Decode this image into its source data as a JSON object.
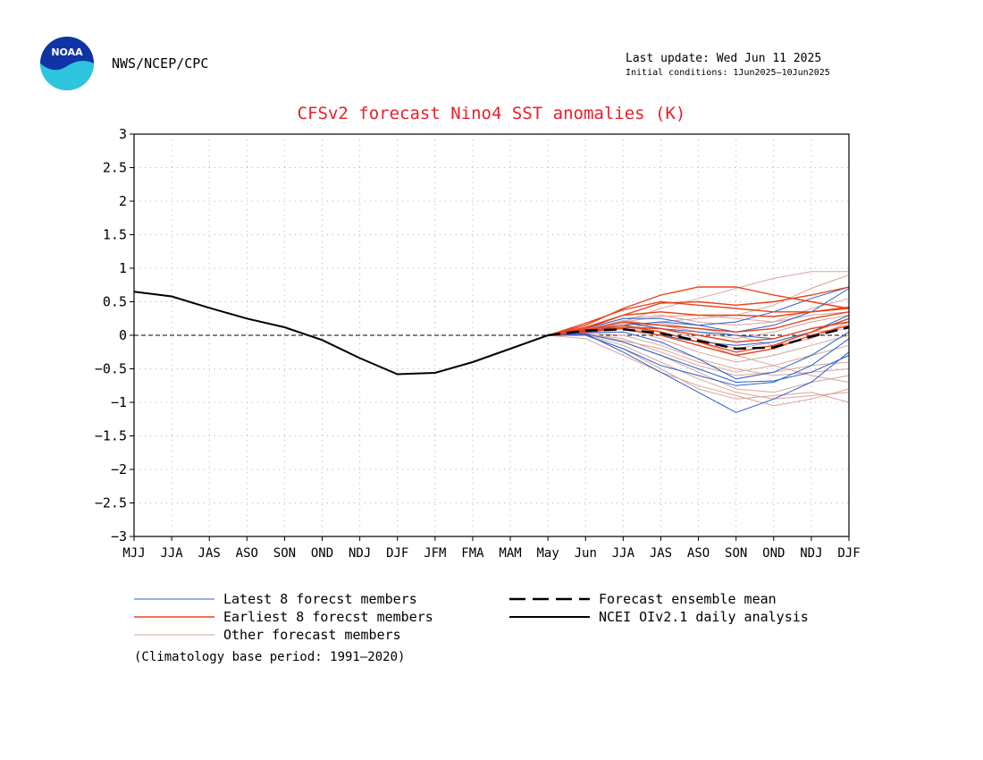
{
  "header": {
    "org": "NWS/NCEP/CPC",
    "last_update": "Last update: Wed Jun 11 2025",
    "initial_conditions": "Initial conditions: 1Jun2025—10Jun2025",
    "logo_icon": "noaa-logo-icon"
  },
  "colors": {
    "title": "#e8202a",
    "latest": "#2c5fc7",
    "earliest": "#e8431c",
    "other": "#d9a59a",
    "mean": "#000000",
    "analysis": "#000000"
  },
  "chart_data": {
    "type": "line",
    "title": "CFSv2 forecast Nino4 SST anomalies (K)",
    "xlabel": "",
    "ylabel": "",
    "categories": [
      "MJJ",
      "JJA",
      "JAS",
      "ASO",
      "SON",
      "OND",
      "NDJ",
      "DJF",
      "JFM",
      "FMA",
      "MAM",
      "May",
      "Jun",
      "JJA",
      "JAS",
      "ASO",
      "SON",
      "OND",
      "NDJ",
      "DJF"
    ],
    "ylim": [
      -3,
      3
    ],
    "yticks": [
      "3",
      "2.5",
      "2",
      "1.5",
      "1",
      "0.5",
      "0",
      "−0.5",
      "−1",
      "−1.5",
      "−2",
      "−2.5",
      "−3"
    ],
    "ytick_values": [
      3,
      2.5,
      2,
      1.5,
      1,
      0.5,
      0,
      -0.5,
      -1,
      -1.5,
      -2,
      -2.5,
      -3
    ],
    "grid": true,
    "zero_line": true,
    "analysis": {
      "name": "NCEI OIv2.1 daily analysis",
      "values": [
        0.65,
        0.58,
        0.41,
        0.25,
        0.12,
        -0.07,
        -0.34,
        -0.58,
        -0.56,
        -0.4,
        -0.2,
        0.0
      ]
    },
    "forecast_x_start": 11,
    "ensemble_mean": {
      "name": "Forecast ensemble mean",
      "values": [
        0.0,
        0.07,
        0.09,
        0.03,
        -0.08,
        -0.2,
        -0.18,
        -0.02,
        0.12
      ]
    },
    "latest_members": {
      "name": "Latest 8 forecst members",
      "series": [
        [
          0.0,
          0.02,
          -0.25,
          -0.55,
          -0.85,
          -1.15,
          -0.95,
          -0.7,
          -0.25
        ],
        [
          0.0,
          0.0,
          -0.2,
          -0.45,
          -0.6,
          -0.75,
          -0.7,
          -0.45,
          -0.05
        ],
        [
          0.0,
          0.05,
          0.15,
          0.2,
          0.15,
          0.05,
          0.15,
          0.35,
          0.7
        ],
        [
          0.0,
          0.04,
          0.05,
          -0.1,
          -0.35,
          -0.65,
          -0.55,
          -0.3,
          0.05
        ],
        [
          0.0,
          0.08,
          0.2,
          0.1,
          0.05,
          0.0,
          -0.05,
          0.1,
          0.2
        ],
        [
          0.0,
          0.1,
          0.25,
          0.25,
          0.15,
          0.2,
          0.35,
          0.55,
          0.72
        ],
        [
          0.0,
          0.02,
          -0.1,
          -0.3,
          -0.5,
          -0.7,
          -0.68,
          -0.55,
          -0.3
        ],
        [
          0.0,
          0.05,
          0.1,
          0.0,
          -0.1,
          -0.15,
          -0.1,
          0.05,
          0.3
        ]
      ]
    },
    "earliest_members": {
      "name": "Earliest 8 forecst members",
      "series": [
        [
          0.0,
          0.15,
          0.4,
          0.6,
          0.72,
          0.72,
          0.6,
          0.5,
          0.4
        ],
        [
          0.0,
          0.12,
          0.3,
          0.48,
          0.5,
          0.45,
          0.5,
          0.6,
          0.72
        ],
        [
          0.0,
          0.08,
          0.15,
          0.05,
          -0.1,
          -0.25,
          -0.15,
          0.05,
          0.25
        ],
        [
          0.0,
          0.1,
          0.3,
          0.35,
          0.3,
          0.3,
          0.28,
          0.35,
          0.42
        ],
        [
          0.0,
          0.05,
          0.1,
          0.0,
          -0.15,
          -0.3,
          -0.2,
          0.0,
          0.15
        ],
        [
          0.0,
          0.08,
          0.2,
          0.15,
          0.1,
          0.05,
          0.1,
          0.25,
          0.35
        ],
        [
          0.0,
          0.18,
          0.38,
          0.5,
          0.45,
          0.4,
          0.35,
          0.35,
          0.4
        ],
        [
          0.0,
          0.06,
          0.12,
          0.1,
          0.0,
          -0.1,
          -0.05,
          0.1,
          0.2
        ]
      ]
    },
    "other_members": {
      "name": "Other forecast members",
      "series": [
        [
          0.0,
          0.05,
          0.2,
          0.4,
          0.55,
          0.7,
          0.85,
          0.95,
          0.95
        ],
        [
          0.0,
          -0.05,
          -0.3,
          -0.55,
          -0.75,
          -0.9,
          -1.05,
          -0.95,
          -0.8
        ],
        [
          0.0,
          0.0,
          -0.2,
          -0.5,
          -0.8,
          -0.95,
          -0.9,
          -0.85,
          -1.0
        ],
        [
          0.0,
          0.05,
          0.1,
          -0.05,
          -0.25,
          -0.4,
          -0.3,
          -0.15,
          0.0
        ],
        [
          0.0,
          0.1,
          0.25,
          0.3,
          0.2,
          0.15,
          0.2,
          0.4,
          0.55
        ],
        [
          0.0,
          0.02,
          -0.05,
          -0.25,
          -0.45,
          -0.6,
          -0.55,
          -0.45,
          -0.4
        ],
        [
          0.0,
          0.08,
          0.15,
          0.2,
          0.25,
          0.3,
          0.45,
          0.7,
          0.9
        ],
        [
          0.0,
          0.04,
          0.0,
          -0.15,
          -0.35,
          -0.5,
          -0.6,
          -0.55,
          -0.5
        ],
        [
          0.0,
          0.06,
          0.18,
          0.1,
          -0.05,
          -0.2,
          -0.1,
          0.05,
          0.1
        ],
        [
          0.0,
          0.03,
          -0.1,
          -0.3,
          -0.55,
          -0.8,
          -0.85,
          -0.7,
          -0.6
        ],
        [
          0.0,
          0.07,
          0.2,
          0.28,
          0.3,
          0.25,
          0.2,
          0.3,
          0.35
        ],
        [
          0.0,
          0.02,
          -0.08,
          -0.2,
          -0.4,
          -0.55,
          -0.45,
          -0.3,
          -0.15
        ],
        [
          0.0,
          0.05,
          0.12,
          0.05,
          -0.1,
          -0.3,
          -0.45,
          -0.6,
          -0.7
        ],
        [
          0.0,
          0.09,
          0.22,
          0.15,
          0.05,
          -0.05,
          0.05,
          0.2,
          0.3
        ],
        [
          0.0,
          0.01,
          -0.15,
          -0.4,
          -0.65,
          -0.85,
          -0.95,
          -0.9,
          -0.85
        ],
        [
          0.0,
          0.06,
          0.1,
          0.18,
          0.1,
          0.0,
          -0.15,
          -0.05,
          0.2
        ]
      ]
    },
    "legend": [
      {
        "label": "Latest 8 forecst members",
        "style": "latest"
      },
      {
        "label": "Earliest 8 forecst members",
        "style": "earliest"
      },
      {
        "label": "Other forecast members",
        "style": "other"
      },
      {
        "label": "Forecast ensemble mean",
        "style": "mean"
      },
      {
        "label": "NCEI OIv2.1 daily analysis",
        "style": "analysis"
      }
    ],
    "legend_placement": "bottom",
    "footnote": "(Climatology base period: 1991—2020)"
  }
}
